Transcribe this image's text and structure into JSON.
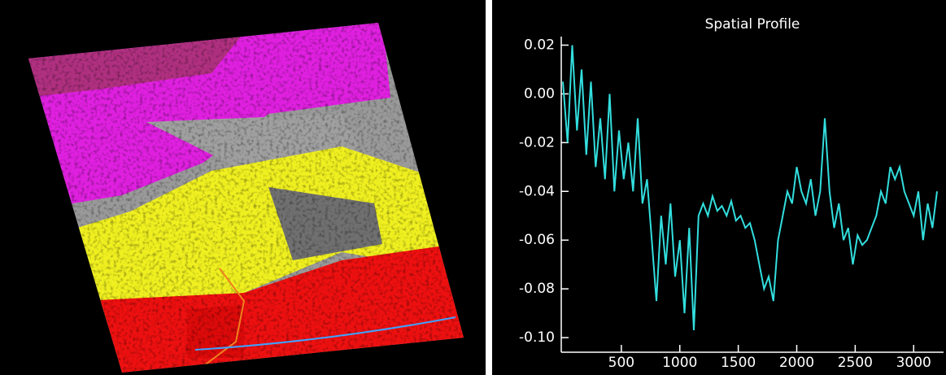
{
  "chart_data": {
    "type": "line",
    "title": "Spatial Profile",
    "x": [
      0,
      40,
      80,
      120,
      160,
      200,
      240,
      280,
      320,
      360,
      400,
      440,
      480,
      520,
      560,
      600,
      640,
      680,
      720,
      760,
      800,
      840,
      880,
      920,
      960,
      1000,
      1040,
      1080,
      1120,
      1160,
      1200,
      1240,
      1280,
      1320,
      1360,
      1400,
      1440,
      1480,
      1520,
      1560,
      1600,
      1640,
      1680,
      1720,
      1760,
      1800,
      1840,
      1880,
      1920,
      1960,
      2000,
      2040,
      2080,
      2120,
      2160,
      2200,
      2240,
      2280,
      2320,
      2360,
      2400,
      2440,
      2480,
      2520,
      2560,
      2600,
      2640,
      2680,
      2720,
      2760,
      2800,
      2840,
      2880,
      2920,
      2960,
      3000,
      3040,
      3080,
      3120,
      3160,
      3200
    ],
    "values": [
      0.005,
      -0.02,
      0.02,
      -0.015,
      0.01,
      -0.025,
      0.005,
      -0.03,
      -0.01,
      -0.035,
      0.0,
      -0.04,
      -0.015,
      -0.035,
      -0.02,
      -0.04,
      -0.01,
      -0.045,
      -0.035,
      -0.06,
      -0.085,
      -0.05,
      -0.07,
      -0.045,
      -0.075,
      -0.06,
      -0.09,
      -0.055,
      -0.097,
      -0.05,
      -0.045,
      -0.05,
      -0.042,
      -0.048,
      -0.046,
      -0.05,
      -0.044,
      -0.052,
      -0.05,
      -0.055,
      -0.053,
      -0.06,
      -0.07,
      -0.08,
      -0.075,
      -0.085,
      -0.06,
      -0.05,
      -0.04,
      -0.045,
      -0.03,
      -0.04,
      -0.045,
      -0.035,
      -0.05,
      -0.04,
      -0.01,
      -0.04,
      -0.055,
      -0.045,
      -0.06,
      -0.055,
      -0.07,
      -0.058,
      -0.062,
      -0.06,
      -0.055,
      -0.05,
      -0.04,
      -0.045,
      -0.03,
      -0.035,
      -0.03,
      -0.04,
      -0.045,
      -0.05,
      -0.04,
      -0.06,
      -0.045,
      -0.055,
      -0.04
    ],
    "color": "#33dede",
    "xlim": [
      0,
      3200
    ],
    "xticks": [
      500,
      1000,
      1500,
      2000,
      2500,
      3000
    ],
    "ylim": [
      -0.106,
      0.0235
    ],
    "yticks": [
      0.02,
      {
        "value": 0,
        "label": "0.00"
      },
      -0.02,
      -0.04,
      -0.06,
      -0.08,
      {
        "value": -0.1,
        "label": "-0.10"
      }
    ]
  }
}
